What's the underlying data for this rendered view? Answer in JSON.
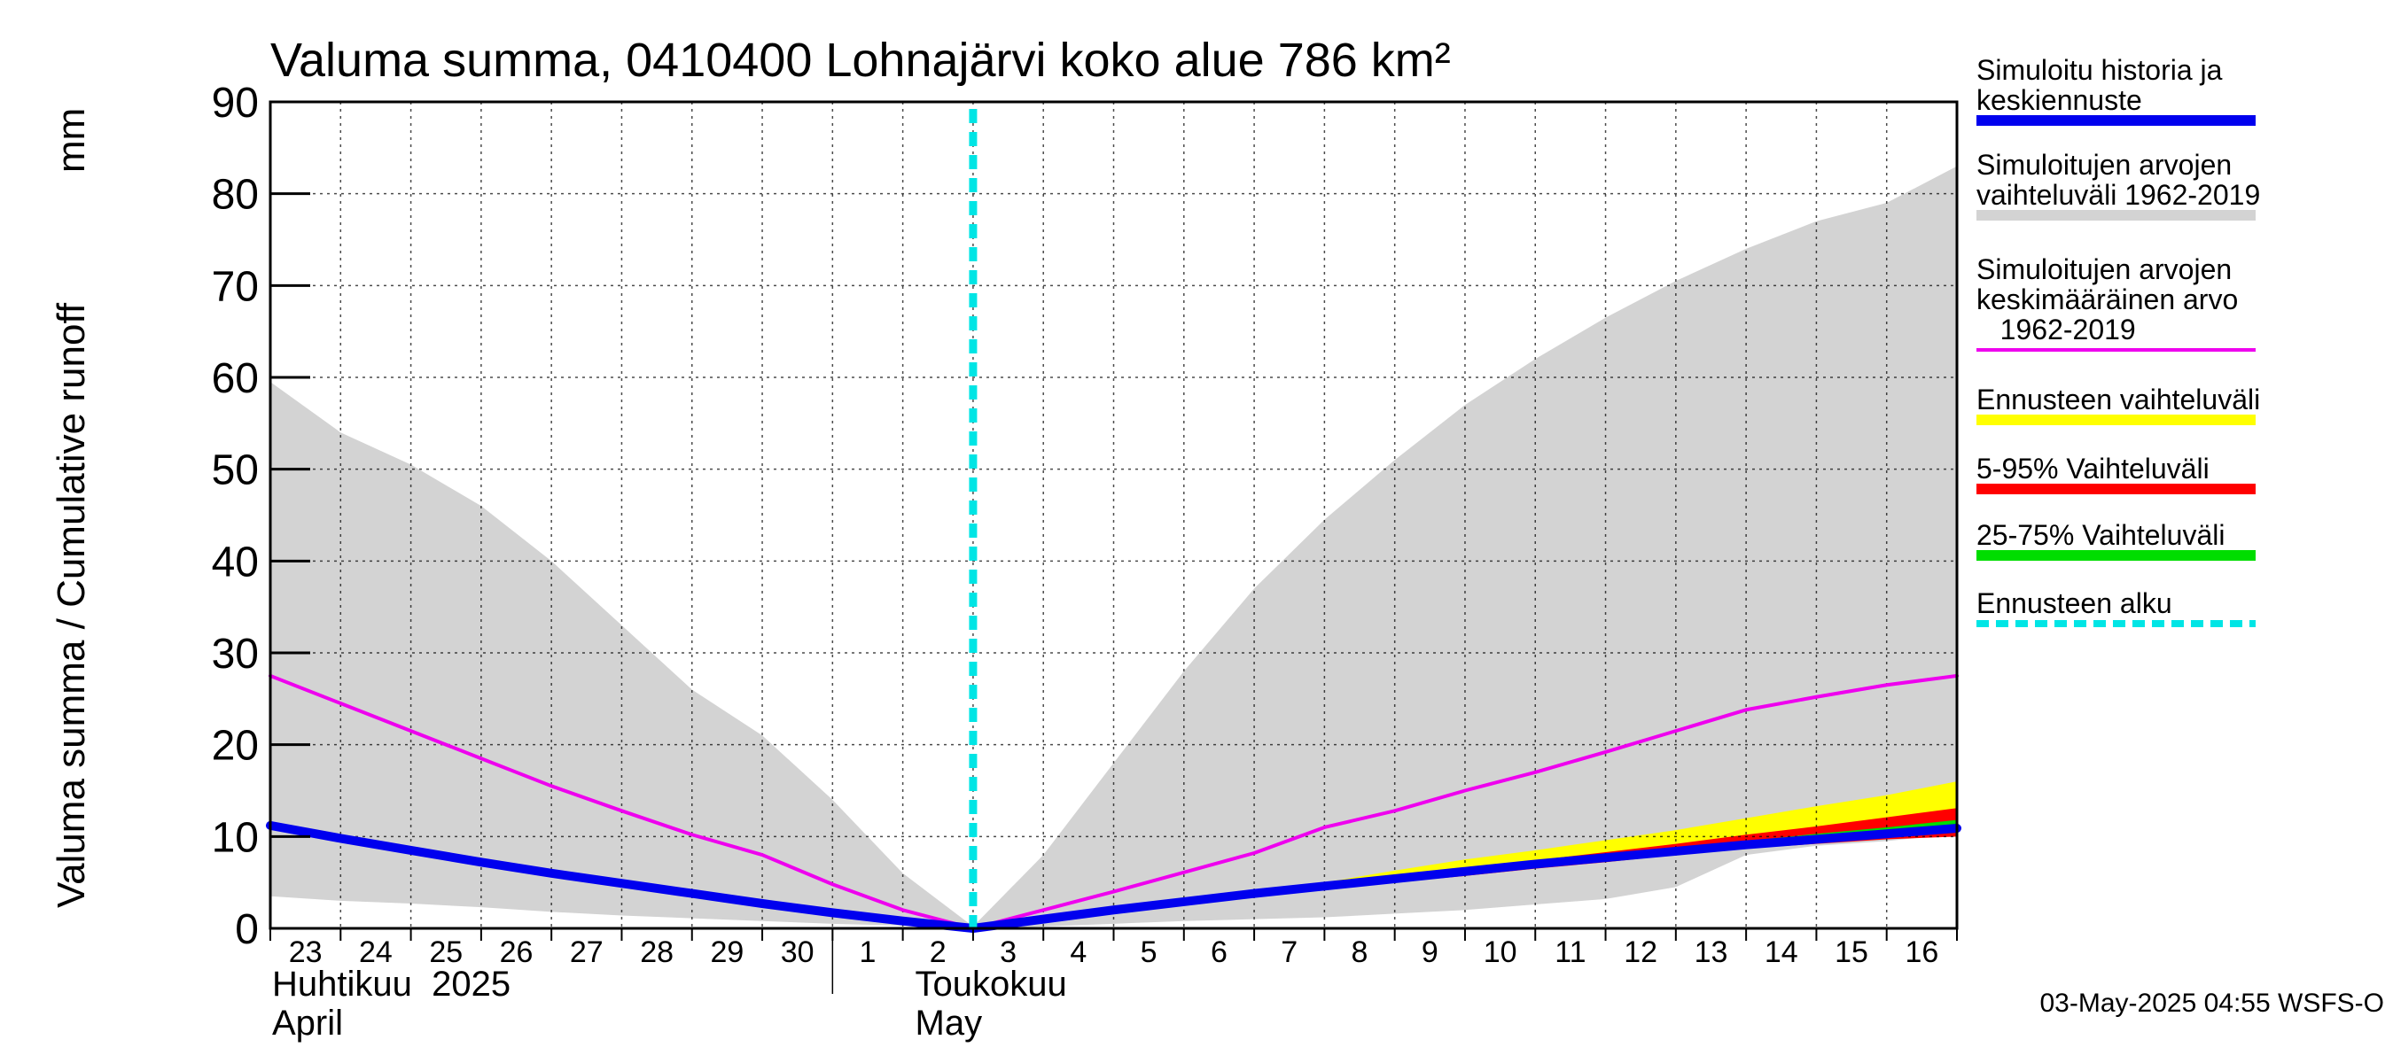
{
  "chart_data": {
    "type": "area",
    "title": "Valuma summa, 0410400 Lohnajärvi koko alue 786 km²",
    "ylabel_left": "Valuma summa / Cumulative runoff",
    "ylabel_unit": "mm",
    "ylim": [
      0,
      90
    ],
    "yticks": [
      0,
      10,
      20,
      30,
      40,
      50,
      60,
      70,
      80,
      90
    ],
    "x_day_index_range": [
      0,
      24
    ],
    "day_ticks": [
      {
        "label": "23",
        "i": 0
      },
      {
        "label": "24",
        "i": 1
      },
      {
        "label": "25",
        "i": 2
      },
      {
        "label": "26",
        "i": 3
      },
      {
        "label": "27",
        "i": 4
      },
      {
        "label": "28",
        "i": 5
      },
      {
        "label": "29",
        "i": 6
      },
      {
        "label": "30",
        "i": 7
      },
      {
        "label": "1",
        "i": 8
      },
      {
        "label": "2",
        "i": 9
      },
      {
        "label": "3",
        "i": 10
      },
      {
        "label": "4",
        "i": 11
      },
      {
        "label": "5",
        "i": 12
      },
      {
        "label": "6",
        "i": 13
      },
      {
        "label": "7",
        "i": 14
      },
      {
        "label": "8",
        "i": 15
      },
      {
        "label": "9",
        "i": 16
      },
      {
        "label": "10",
        "i": 17
      },
      {
        "label": "11",
        "i": 18
      },
      {
        "label": "12",
        "i": 19
      },
      {
        "label": "13",
        "i": 20
      },
      {
        "label": "14",
        "i": 21
      },
      {
        "label": "15",
        "i": 22
      },
      {
        "label": "16",
        "i": 23
      }
    ],
    "month_labels": [
      {
        "line1": "Huhtikuu  2025",
        "line2": "April",
        "i": 0
      },
      {
        "line1": "Toukokuu",
        "line2": "May",
        "i": 9.15
      }
    ],
    "month_separator_index": 8,
    "forecast_start_index": 10,
    "series": [
      {
        "name": "Simuloitujen arvojen vaihteluväli 1962-2019",
        "kind": "band",
        "color": "#d3d3d3",
        "x": [
          0,
          1,
          2,
          3,
          4,
          5,
          6,
          7,
          8,
          9,
          10,
          11,
          12,
          13,
          14,
          15,
          16,
          17,
          18,
          19,
          20,
          21,
          22,
          23,
          24
        ],
        "upper": [
          59.5,
          54,
          50.5,
          46,
          40,
          33,
          26,
          21,
          14,
          6,
          0.2,
          8,
          18,
          28,
          37,
          44.5,
          51,
          57,
          62,
          66.5,
          70.5,
          74,
          77,
          79,
          83
        ],
        "lower": [
          3.5,
          3,
          2.7,
          2.3,
          1.8,
          1.4,
          1.1,
          0.8,
          0.5,
          0.3,
          0,
          0.2,
          0.5,
          0.8,
          1,
          1.2,
          1.6,
          2,
          2.6,
          3.2,
          4.5,
          8,
          9,
          9.5,
          10.3
        ]
      },
      {
        "name": "Ennusteen vaihteluväli",
        "kind": "band",
        "color": "#ffff00",
        "x": [
          14,
          15,
          16,
          17,
          18,
          19,
          20,
          21,
          22,
          23,
          24
        ],
        "upper": [
          4,
          5,
          6.3,
          7.5,
          8.5,
          9.6,
          10.7,
          12,
          13.3,
          14.5,
          16
        ],
        "lower": [
          4,
          4.5,
          5,
          5.8,
          6.6,
          7.4,
          8.2,
          9,
          9.5,
          10,
          10.2
        ]
      },
      {
        "name": "5-95% Vaihteluväli",
        "kind": "band",
        "color": "#ff0000",
        "x": [
          14,
          15,
          16,
          17,
          18,
          19,
          20,
          21,
          22,
          23,
          24
        ],
        "upper": [
          4,
          4.8,
          5.5,
          6.5,
          7.4,
          8.3,
          9.2,
          10.2,
          11.1,
          12.1,
          13.1
        ],
        "lower": [
          4,
          4.5,
          5,
          5.7,
          6.5,
          7.2,
          8,
          8.7,
          9.2,
          9.7,
          10
        ]
      },
      {
        "name": "25-75% Vaihteluväli",
        "kind": "band",
        "color": "#00dd00",
        "x": [
          14,
          15,
          16,
          17,
          18,
          19,
          20,
          21,
          22,
          23,
          24
        ],
        "upper": [
          4,
          4.6,
          5.2,
          6,
          6.8,
          7.7,
          8.6,
          9.5,
          10.3,
          11,
          11.8
        ],
        "lower": [
          4,
          4.5,
          5.1,
          5.8,
          6.6,
          7.4,
          8.2,
          9,
          9.6,
          10.1,
          10.6
        ]
      },
      {
        "name": "Simuloitujen arvojen keskimääräinen arvo 1962-2019",
        "kind": "line",
        "color": "#ee00ee",
        "x": [
          0,
          1,
          2,
          3,
          4,
          5,
          6,
          7,
          8,
          9,
          10,
          11,
          12,
          13,
          14,
          15,
          16,
          17,
          18,
          19,
          20,
          21,
          22,
          23,
          24
        ],
        "y": [
          27.5,
          24.5,
          21.5,
          18.5,
          15.5,
          12.8,
          10.2,
          8,
          4.8,
          2,
          0,
          2,
          4,
          6.1,
          8.2,
          11,
          12.8,
          15,
          17,
          19.2,
          21.5,
          23.8,
          25.2,
          26.5,
          27.5
        ]
      },
      {
        "name": "Simuloitu historia ja keskiennuste",
        "kind": "line",
        "color": "#0000ee",
        "x": [
          0,
          1,
          2,
          3,
          4,
          5,
          6,
          7,
          8,
          9,
          10,
          11,
          12,
          13,
          14,
          15,
          16,
          17,
          18,
          19,
          20,
          21,
          22,
          23,
          24
        ],
        "y": [
          11.2,
          9.8,
          8.5,
          7.2,
          6,
          4.9,
          3.8,
          2.7,
          1.7,
          0.8,
          0,
          1,
          2,
          2.9,
          3.8,
          4.6,
          5.4,
          6.2,
          7,
          7.7,
          8.4,
          9.1,
          9.7,
          10.3,
          10.9
        ]
      }
    ],
    "legend": [
      {
        "lines": [
          "Simuloitu historia ja",
          "keskiennuste"
        ],
        "color": "#0000ee",
        "style": "solid"
      },
      {
        "lines": [
          "Simuloitujen arvojen",
          "vaihteluväli 1962-2019"
        ],
        "color": "#d3d3d3",
        "style": "solid"
      },
      {
        "lines": [
          "Simuloitujen arvojen",
          "keskimääräinen arvo",
          "   1962-2019"
        ],
        "color": "#ee00ee",
        "style": "thin"
      },
      {
        "lines": [
          "Ennusteen vaihteluväli"
        ],
        "color": "#ffff00",
        "style": "solid"
      },
      {
        "lines": [
          "5-95% Vaihteluväli"
        ],
        "color": "#ff0000",
        "style": "solid"
      },
      {
        "lines": [
          "25-75% Vaihteluväli"
        ],
        "color": "#00dd00",
        "style": "solid"
      },
      {
        "lines": [
          "Ennusteen alku"
        ],
        "color": "#00e5e5",
        "style": "dashed"
      }
    ],
    "forecast_line_color": "#00e5e5",
    "footer": "03-May-2025 04:55 WSFS-O"
  }
}
